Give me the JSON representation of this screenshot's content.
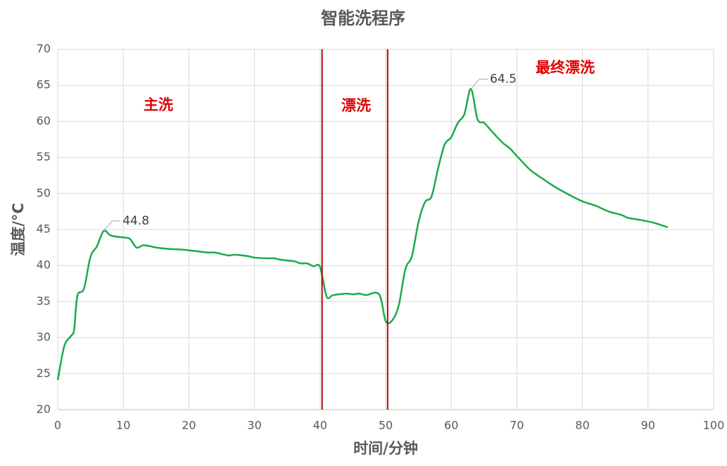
{
  "chart_data": {
    "type": "line",
    "title": "智能洗程序",
    "x_label": "时间/分钟",
    "y_label": "温度/°C",
    "xlim": [
      0,
      100
    ],
    "xticks": [
      0,
      10,
      20,
      30,
      40,
      50,
      60,
      70,
      80,
      90,
      100
    ],
    "ylim": [
      20,
      70
    ],
    "yticks": [
      20,
      25,
      30,
      35,
      40,
      45,
      50,
      55,
      60,
      65,
      70
    ],
    "grid": true,
    "x": [
      0,
      1,
      2,
      2.5,
      3,
      4,
      5,
      6,
      7,
      8,
      9,
      10,
      11,
      12,
      13,
      14,
      15,
      17,
      19,
      21,
      23,
      24,
      26,
      27,
      29,
      30,
      32,
      33,
      34,
      36,
      37,
      38,
      39,
      40,
      41,
      42,
      44,
      45,
      46,
      47,
      49,
      50,
      51,
      52,
      53,
      54,
      55,
      56,
      57,
      58,
      59,
      60,
      61,
      62,
      63,
      64,
      65,
      66,
      67,
      68,
      69,
      70,
      72,
      74,
      76,
      78,
      80,
      82,
      84,
      86,
      87,
      89,
      91,
      93
    ],
    "series": [
      {
        "name": "温度",
        "color": "#1aab4b",
        "values": [
          24.1,
          28.8,
          30.2,
          31.1,
          35.8,
          36.8,
          41.2,
          42.7,
          44.8,
          44.2,
          44.0,
          43.9,
          43.7,
          42.5,
          42.8,
          42.7,
          42.5,
          42.3,
          42.2,
          42.0,
          41.8,
          41.8,
          41.4,
          41.5,
          41.3,
          41.1,
          41.0,
          41.0,
          40.8,
          40.6,
          40.3,
          40.3,
          39.9,
          39.8,
          35.7,
          35.9,
          36.1,
          36.0,
          36.1,
          35.9,
          36.0,
          32.3,
          32.4,
          34.5,
          39.5,
          41.3,
          46.0,
          48.8,
          49.6,
          53.5,
          56.8,
          57.8,
          59.8,
          61.0,
          64.5,
          60.3,
          59.8,
          58.8,
          57.8,
          56.9,
          56.2,
          55.2,
          53.3,
          52.0,
          50.8,
          49.8,
          48.9,
          48.3,
          47.5,
          47.0,
          46.6,
          46.3,
          45.9,
          45.3
        ],
        "value_labels": [
          null,
          null,
          null,
          null,
          null,
          null,
          null,
          null,
          "44.8",
          null,
          null,
          null,
          null,
          null,
          null,
          null,
          null,
          null,
          null,
          null,
          null,
          null,
          null,
          null,
          null,
          null,
          null,
          null,
          null,
          null,
          null,
          null,
          null,
          null,
          null,
          null,
          null,
          null,
          null,
          null,
          null,
          null,
          null,
          null,
          null,
          null,
          null,
          null,
          null,
          null,
          null,
          null,
          null,
          null,
          "64.5",
          null,
          null,
          null,
          null,
          null,
          null,
          null,
          null,
          null,
          null,
          null,
          null,
          null,
          null,
          null,
          null,
          null,
          null,
          null
        ]
      }
    ],
    "vlines": [
      40.3,
      50.3
    ],
    "vline_color": "#c00000",
    "annotations": [
      "主洗",
      "漂洗",
      "最终漂洗"
    ],
    "annotation_color": "#e00000"
  }
}
